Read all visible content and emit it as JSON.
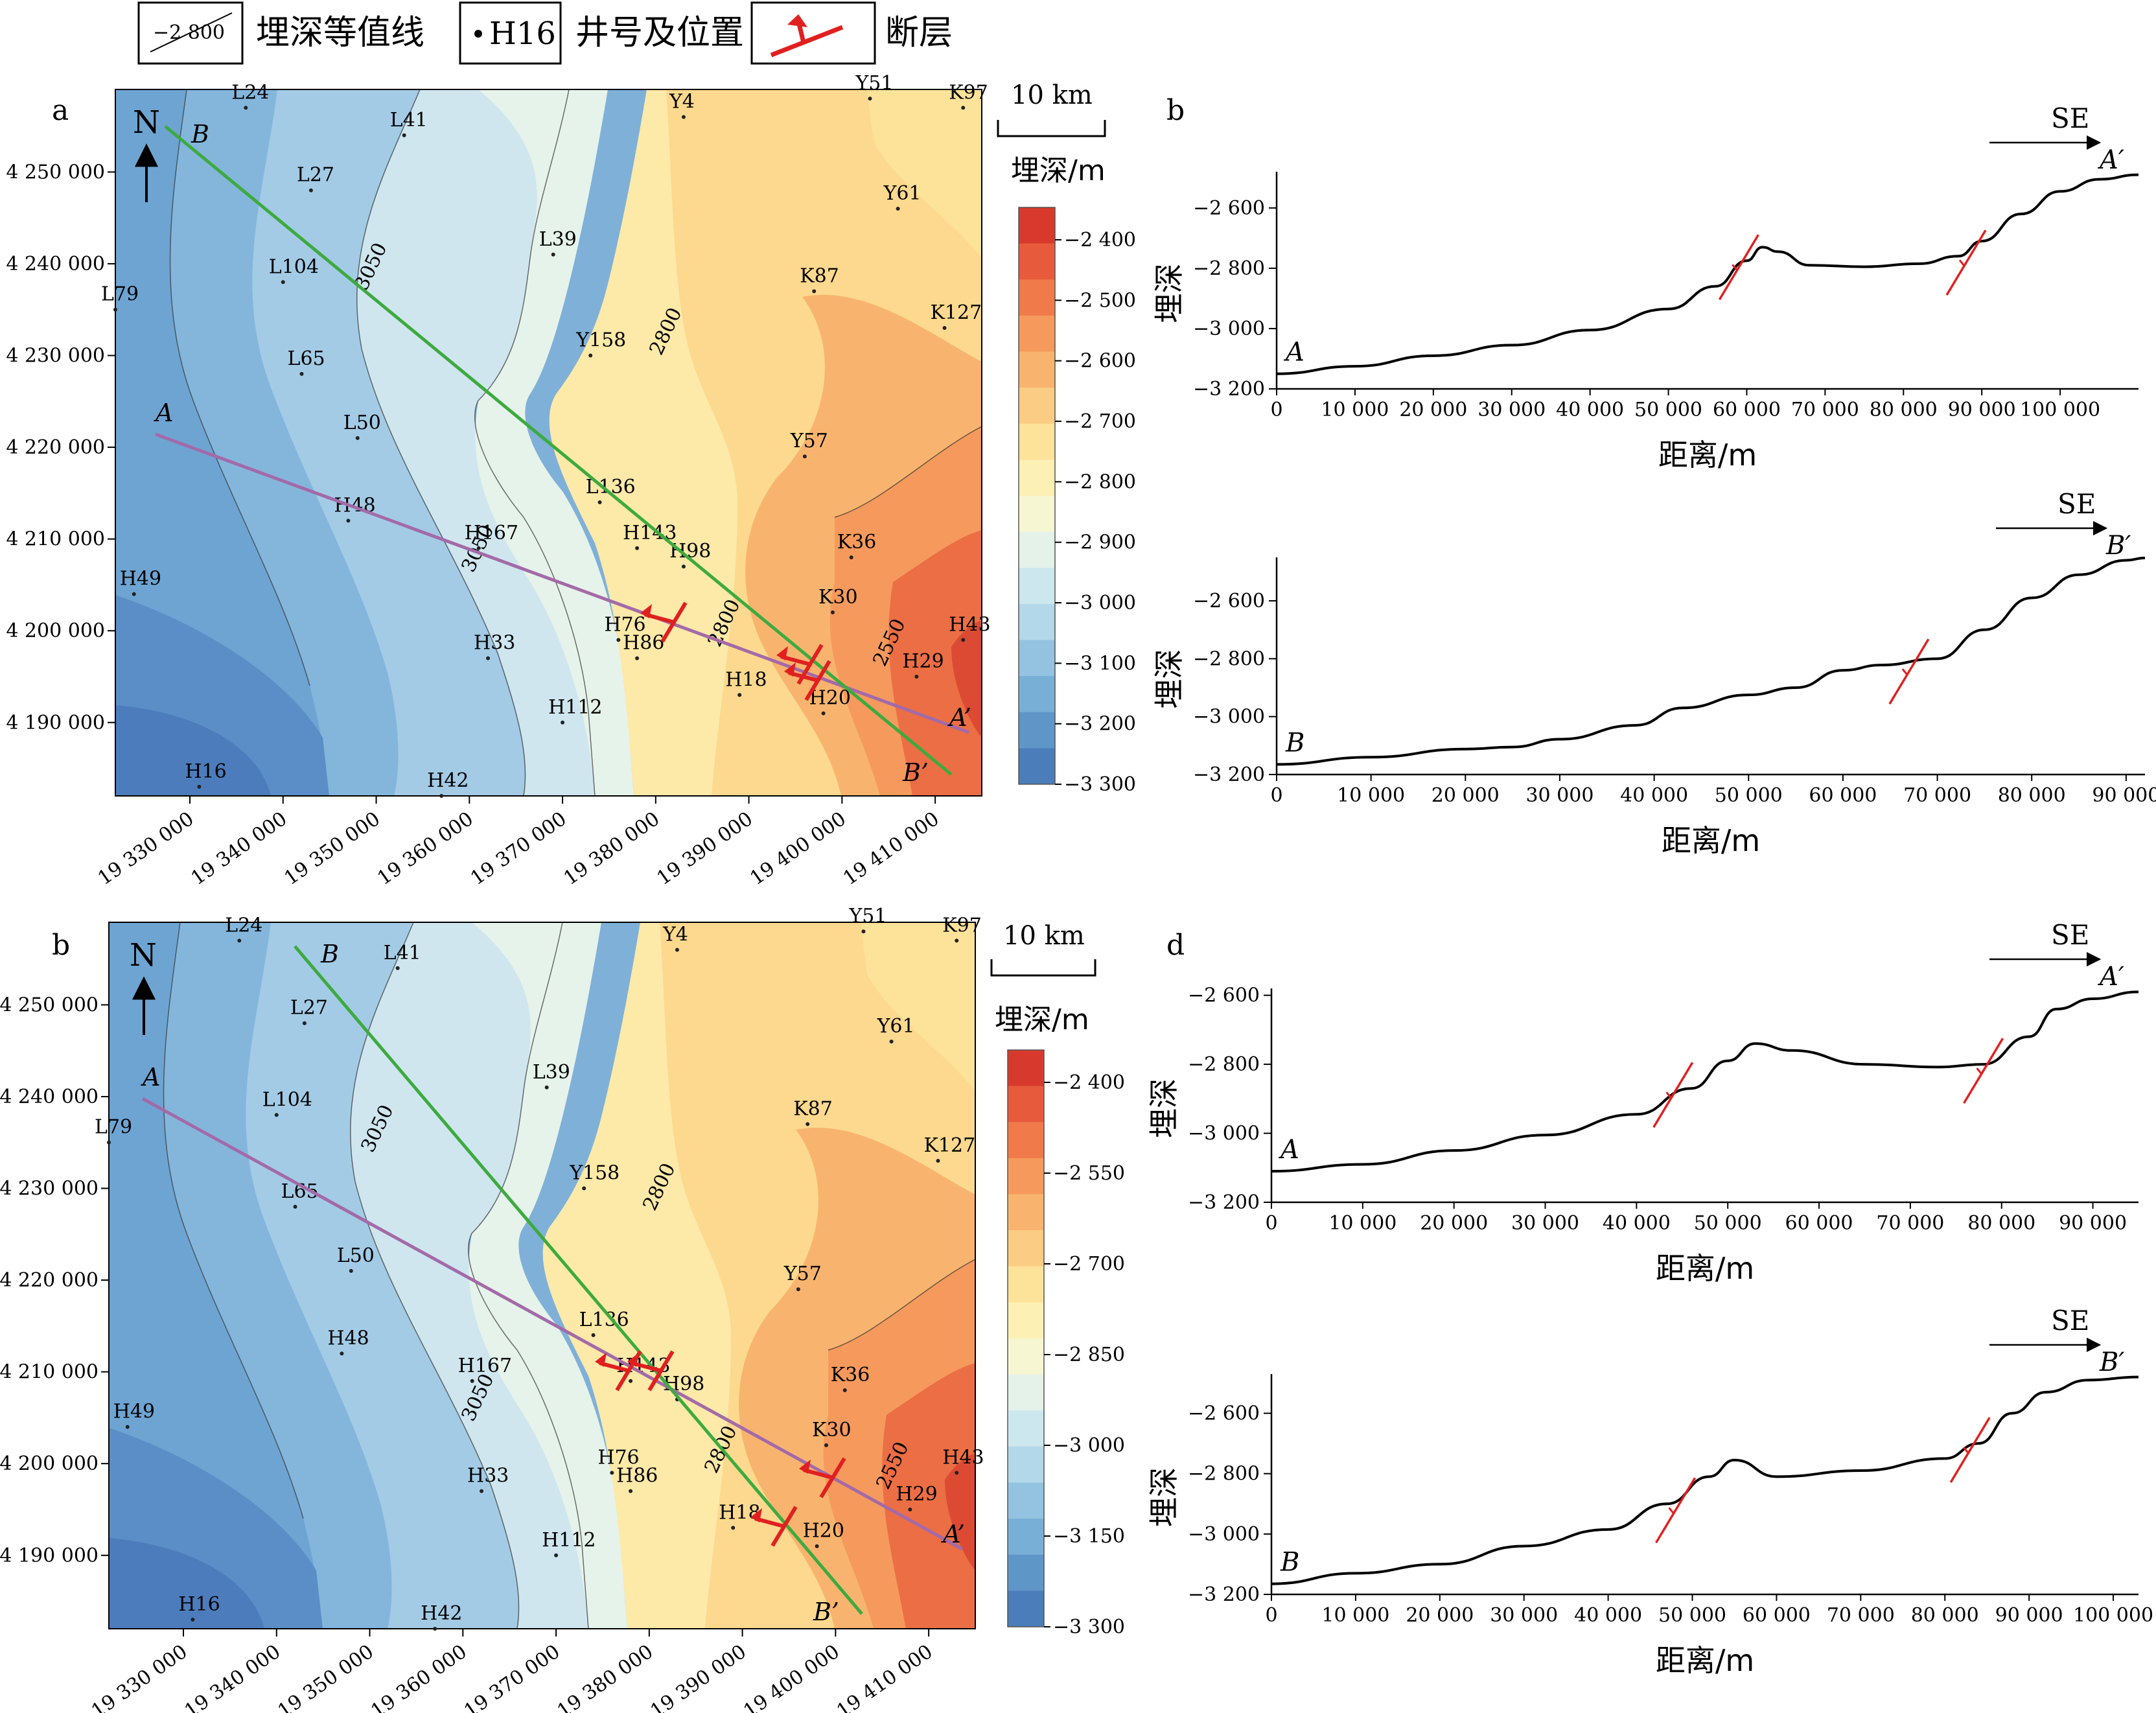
{
  "legend": {
    "contour_sample": "−2 800",
    "contour_label": "埋深等值线",
    "well_sample": "H16",
    "well_label": "井号及位置",
    "fault_label": "断层"
  },
  "colors": {
    "section_a": "#a36aa8",
    "section_b": "#3daa3f",
    "fault": "#e02020",
    "scale": [
      "#d73a2c",
      "#e85a3c",
      "#f07a4a",
      "#f59a5c",
      "#f8b46e",
      "#fbcd84",
      "#fde29a",
      "#fdf0b4",
      "#f6f6d2",
      "#e4f2ea",
      "#cde7ee",
      "#b2d8e9",
      "#93c3e0",
      "#78afd6",
      "#5f96c8",
      "#4a7dba"
    ]
  },
  "icons": {
    "north": "north-arrow-icon",
    "fault": "fault-symbol-icon",
    "well": "well-dot-icon",
    "direction": "direction-arrow-icon"
  },
  "chart_data": [
    {
      "type": "heatmap",
      "panel_label": "a",
      "north_label": "N",
      "scale_bar": "10 km",
      "colorbar_title": "埋深/m",
      "colorbar_ticks": [
        "−2 400",
        "−2 500",
        "−2 600",
        "−2 700",
        "−2 800",
        "−2 900",
        "−3 000",
        "−3 100",
        "−3 200",
        "−3 300"
      ],
      "x_ticks": [
        "19 330 000",
        "19 340 000",
        "19 350 000",
        "19 360 000",
        "19 370 000",
        "19 380 000",
        "19 390 000",
        "19 400 000",
        "19 410 000"
      ],
      "y_ticks": [
        "4 250 000",
        "4 240 000",
        "4 230 000",
        "4 220 000",
        "4 210 000",
        "4 200 000",
        "4 190 000"
      ],
      "xlim": [
        19322000,
        19415000
      ],
      "ylim": [
        4182000,
        4259000
      ],
      "contour_labels": [
        "3050",
        "2800",
        "3050",
        "2800",
        "2550"
      ],
      "section_labels": {
        "A": "A",
        "A_end": "A’",
        "B": "B",
        "B_end": "B’"
      },
      "wells": [
        {
          "name": "L24",
          "x": 19336000,
          "y": 4257000
        },
        {
          "name": "L41",
          "x": 19353000,
          "y": 4254000
        },
        {
          "name": "Y4",
          "x": 19383000,
          "y": 4256000
        },
        {
          "name": "Y51",
          "x": 19403000,
          "y": 4258000
        },
        {
          "name": "K97",
          "x": 19413000,
          "y": 4257000
        },
        {
          "name": "L27",
          "x": 19343000,
          "y": 4248000
        },
        {
          "name": "Y61",
          "x": 19406000,
          "y": 4246000
        },
        {
          "name": "L104",
          "x": 19340000,
          "y": 4238000
        },
        {
          "name": "L39",
          "x": 19369000,
          "y": 4241000
        },
        {
          "name": "K87",
          "x": 19397000,
          "y": 4237000
        },
        {
          "name": "K127",
          "x": 19411000,
          "y": 4233000
        },
        {
          "name": "L79",
          "x": 19322000,
          "y": 4235000
        },
        {
          "name": "Y158",
          "x": 19373000,
          "y": 4230000
        },
        {
          "name": "L65",
          "x": 19342000,
          "y": 4228000
        },
        {
          "name": "L50",
          "x": 19348000,
          "y": 4221000
        },
        {
          "name": "Y57",
          "x": 19396000,
          "y": 4219000
        },
        {
          "name": "L136",
          "x": 19374000,
          "y": 4214000
        },
        {
          "name": "H48",
          "x": 19347000,
          "y": 4212000
        },
        {
          "name": "H167",
          "x": 19361000,
          "y": 4209000
        },
        {
          "name": "H143",
          "x": 19378000,
          "y": 4209000
        },
        {
          "name": "H98",
          "x": 19383000,
          "y": 4207000
        },
        {
          "name": "K36",
          "x": 19401000,
          "y": 4208000
        },
        {
          "name": "H49",
          "x": 19324000,
          "y": 4204000
        },
        {
          "name": "K30",
          "x": 19399000,
          "y": 4202000
        },
        {
          "name": "H76",
          "x": 19376000,
          "y": 4199000
        },
        {
          "name": "H86",
          "x": 19378000,
          "y": 4197000
        },
        {
          "name": "H33",
          "x": 19362000,
          "y": 4197000
        },
        {
          "name": "H43",
          "x": 19413000,
          "y": 4199000
        },
        {
          "name": "H29",
          "x": 19408000,
          "y": 4195000
        },
        {
          "name": "H18",
          "x": 19389000,
          "y": 4193000
        },
        {
          "name": "H20",
          "x": 19398000,
          "y": 4191000
        },
        {
          "name": "H112",
          "x": 19370000,
          "y": 4190000
        },
        {
          "name": "H16",
          "x": 19331000,
          "y": 4183000
        },
        {
          "name": "H42",
          "x": 19357000,
          "y": 4182000
        }
      ]
    },
    {
      "type": "line",
      "panel_label": "b",
      "direction_label": "SE",
      "start_label": "A",
      "end_label": "A′",
      "xlabel": "距离/m",
      "ylabel": "埋深",
      "xlim": [
        0,
        110000
      ],
      "ylim": [
        -3200,
        -2480
      ],
      "x_ticks": [
        "0",
        "10 000",
        "20 000",
        "30 000",
        "40 000",
        "50 000",
        "60 000",
        "70 000",
        "80 000",
        "90 000",
        "100 000"
      ],
      "y_ticks": [
        "−2 600",
        "−2 800",
        "−3 000",
        "−3 200"
      ],
      "series": [
        {
          "x": [
            0,
            10000,
            20000,
            30000,
            40000,
            50000,
            56000,
            60000,
            62000,
            64000,
            68000,
            75000,
            82000,
            87000,
            90000,
            95000,
            100000,
            105000,
            110000
          ],
          "y": [
            -3150,
            -3125,
            -3090,
            -3055,
            -3005,
            -2935,
            -2860,
            -2775,
            -2730,
            -2745,
            -2790,
            -2795,
            -2785,
            -2760,
            -2710,
            -2620,
            -2545,
            -2505,
            -2490
          ]
        }
      ],
      "faults_x": [
        59000,
        88000
      ]
    },
    {
      "type": "line",
      "panel_label": "",
      "direction_label": "SE",
      "start_label": "B",
      "end_label": "B′",
      "xlabel": "距离/m",
      "ylabel": "埋深",
      "xlim": [
        0,
        92000
      ],
      "ylim": [
        -3200,
        -2450
      ],
      "x_ticks": [
        "0",
        "10 000",
        "20 000",
        "30 000",
        "40 000",
        "50 000",
        "60 000",
        "70 000",
        "80 000",
        "90 000"
      ],
      "y_ticks": [
        "−2 600",
        "−2 800",
        "−3 000",
        "−3 200"
      ],
      "series": [
        {
          "x": [
            0,
            10000,
            20000,
            25000,
            30000,
            38000,
            43000,
            50000,
            55000,
            60000,
            64000,
            70000,
            75000,
            80000,
            85000,
            90000,
            92000
          ],
          "y": [
            -3165,
            -3140,
            -3112,
            -3105,
            -3078,
            -3030,
            -2970,
            -2925,
            -2900,
            -2840,
            -2822,
            -2800,
            -2700,
            -2590,
            -2510,
            -2460,
            -2452
          ]
        }
      ],
      "faults_x": [
        67000
      ]
    },
    {
      "type": "heatmap",
      "panel_label": "b",
      "north_label": "N",
      "scale_bar": "10 km",
      "colorbar_title": "埋深/m",
      "colorbar_ticks": [
        "−2 400",
        "−2 550",
        "−2 700",
        "−2 850",
        "−3 000",
        "−3 150",
        "−3 300"
      ],
      "x_ticks": [
        "19 330 000",
        "19 340 000",
        "19 350 000",
        "19 360 000",
        "19 370 000",
        "19 380 000",
        "19 390 000",
        "19 400 000",
        "19 410 000"
      ],
      "y_ticks": [
        "4 250 000",
        "4 240 000",
        "4 230 000",
        "4 220 000",
        "4 210 000",
        "4 200 000",
        "4 190 000"
      ],
      "xlim": [
        19322000,
        19415000
      ],
      "ylim": [
        4182000,
        4259000
      ],
      "contour_labels": [
        "3050",
        "2800",
        "3050",
        "2800",
        "2550"
      ],
      "section_labels": {
        "A": "A",
        "A_end": "A’",
        "B": "B",
        "B_end": "B’"
      },
      "wells": [
        {
          "name": "L24",
          "x": 19336000,
          "y": 4257000
        },
        {
          "name": "L41",
          "x": 19353000,
          "y": 4254000
        },
        {
          "name": "Y4",
          "x": 19383000,
          "y": 4256000
        },
        {
          "name": "Y51",
          "x": 19403000,
          "y": 4258000
        },
        {
          "name": "K97",
          "x": 19413000,
          "y": 4257000
        },
        {
          "name": "L27",
          "x": 19343000,
          "y": 4248000
        },
        {
          "name": "Y61",
          "x": 19406000,
          "y": 4246000
        },
        {
          "name": "L104",
          "x": 19340000,
          "y": 4238000
        },
        {
          "name": "L39",
          "x": 19369000,
          "y": 4241000
        },
        {
          "name": "K87",
          "x": 19397000,
          "y": 4237000
        },
        {
          "name": "K127",
          "x": 19411000,
          "y": 4233000
        },
        {
          "name": "L79",
          "x": 19322000,
          "y": 4235000
        },
        {
          "name": "Y158",
          "x": 19373000,
          "y": 4230000
        },
        {
          "name": "L65",
          "x": 19342000,
          "y": 4228000
        },
        {
          "name": "L50",
          "x": 19348000,
          "y": 4221000
        },
        {
          "name": "Y57",
          "x": 19396000,
          "y": 4219000
        },
        {
          "name": "L136",
          "x": 19374000,
          "y": 4214000
        },
        {
          "name": "H48",
          "x": 19347000,
          "y": 4212000
        },
        {
          "name": "H167",
          "x": 19361000,
          "y": 4209000
        },
        {
          "name": "H143",
          "x": 19378000,
          "y": 4209000
        },
        {
          "name": "H98",
          "x": 19383000,
          "y": 4207000
        },
        {
          "name": "K36",
          "x": 19401000,
          "y": 4208000
        },
        {
          "name": "H49",
          "x": 19324000,
          "y": 4204000
        },
        {
          "name": "K30",
          "x": 19399000,
          "y": 4202000
        },
        {
          "name": "H76",
          "x": 19376000,
          "y": 4199000
        },
        {
          "name": "H86",
          "x": 19378000,
          "y": 4197000
        },
        {
          "name": "H33",
          "x": 19362000,
          "y": 4197000
        },
        {
          "name": "H43",
          "x": 19413000,
          "y": 4199000
        },
        {
          "name": "H29",
          "x": 19408000,
          "y": 4195000
        },
        {
          "name": "H18",
          "x": 19389000,
          "y": 4193000
        },
        {
          "name": "H20",
          "x": 19398000,
          "y": 4191000
        },
        {
          "name": "H112",
          "x": 19370000,
          "y": 4190000
        },
        {
          "name": "H16",
          "x": 19331000,
          "y": 4183000
        },
        {
          "name": "H42",
          "x": 19357000,
          "y": 4182000
        }
      ]
    },
    {
      "type": "line",
      "panel_label": "d",
      "direction_label": "SE",
      "start_label": "A",
      "end_label": "A′",
      "xlabel": "距离/m",
      "ylabel": "埋深",
      "xlim": [
        0,
        95000
      ],
      "ylim": [
        -3200,
        -2580
      ],
      "x_ticks": [
        "0",
        "10 000",
        "20 000",
        "30 000",
        "40 000",
        "50 000",
        "60 000",
        "70 000",
        "80 000",
        "90 000"
      ],
      "y_ticks": [
        "−2 600",
        "−2 800",
        "−3 000",
        "−3 200"
      ],
      "series": [
        {
          "x": [
            0,
            10000,
            20000,
            30000,
            40000,
            46000,
            50000,
            53000,
            57000,
            65000,
            73000,
            78000,
            83000,
            86000,
            90000,
            95000
          ],
          "y": [
            -3110,
            -3090,
            -3050,
            -3005,
            -2945,
            -2870,
            -2790,
            -2740,
            -2760,
            -2800,
            -2808,
            -2800,
            -2720,
            -2640,
            -2610,
            -2590
          ]
        }
      ],
      "faults_x": [
        44000,
        78000
      ]
    },
    {
      "type": "line",
      "panel_label": "",
      "direction_label": "SE",
      "start_label": "B",
      "end_label": "B′",
      "xlabel": "距离/m",
      "ylabel": "埋深",
      "xlim": [
        0,
        103000
      ],
      "ylim": [
        -3200,
        -2470
      ],
      "x_ticks": [
        "0",
        "10 000",
        "20 000",
        "30 000",
        "40 000",
        "50 000",
        "60 000",
        "70 000",
        "80 000",
        "90 000",
        "100 000"
      ],
      "y_ticks": [
        "−2 600",
        "−2 800",
        "−3 000",
        "−3 200"
      ],
      "series": [
        {
          "x": [
            0,
            10000,
            20000,
            30000,
            40000,
            47000,
            52000,
            55000,
            60000,
            70000,
            80000,
            84000,
            88000,
            92000,
            97000,
            103000
          ],
          "y": [
            -3165,
            -3130,
            -3100,
            -3040,
            -2985,
            -2900,
            -2810,
            -2755,
            -2810,
            -2790,
            -2750,
            -2700,
            -2600,
            -2530,
            -2490,
            -2480
          ]
        }
      ],
      "faults_x": [
        48000,
        83000
      ]
    }
  ]
}
